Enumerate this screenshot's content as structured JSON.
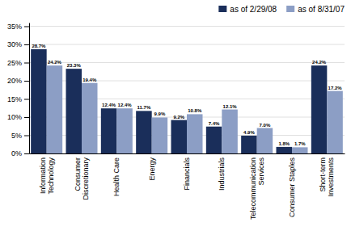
{
  "chart_data": {
    "type": "bar",
    "categories": [
      "Information\nTechnology",
      "Consumer\nDiscretionary",
      "Health Care",
      "Energy",
      "Financials",
      "Industrials",
      "Telecommunication\nServices",
      "Consumer Staples",
      "Short-term\nInvestments"
    ],
    "series": [
      {
        "name": "as of 2/29/08",
        "color": "#1a2e5a",
        "values": [
          28.7,
          23.3,
          12.4,
          11.7,
          9.2,
          7.4,
          4.9,
          1.8,
          24.2
        ],
        "value_labels": [
          "28.7%",
          "23.3%",
          "12.4%",
          "11.7%",
          "9.2%",
          "7.4%",
          "4.9%",
          "1.8%",
          "24.2%"
        ]
      },
      {
        "name": "as of 8/31/07",
        "color": "#8c9ec5",
        "values": [
          24.2,
          19.4,
          12.4,
          9.9,
          10.8,
          12.1,
          7.0,
          1.7,
          17.2
        ],
        "value_labels": [
          "24.2%",
          "19.4%",
          "12.4%",
          "9.9%",
          "10.8%",
          "12.1%",
          "7.0%",
          "1.7%",
          "17.2%"
        ]
      }
    ],
    "ylim": [
      0,
      36
    ],
    "yticks": [
      {
        "value": 0,
        "label": "0%"
      },
      {
        "value": 5,
        "label": "5%"
      },
      {
        "value": 10,
        "label": "10%"
      },
      {
        "value": 15,
        "label": "15%"
      },
      {
        "value": 20,
        "label": "20%"
      },
      {
        "value": 25,
        "label": "25%"
      },
      {
        "value": 30,
        "label": "30%"
      },
      {
        "value": 35,
        "label": "35%"
      }
    ],
    "grid": true,
    "legend": "upper right",
    "data_labels": true
  }
}
